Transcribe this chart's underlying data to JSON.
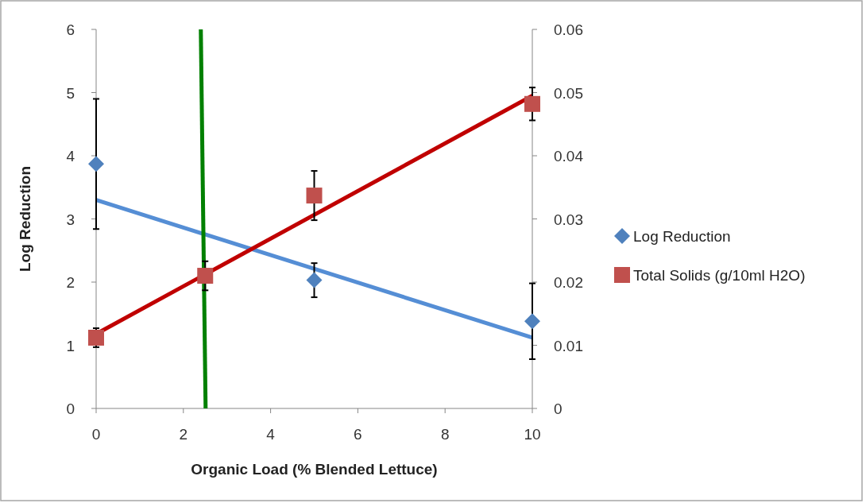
{
  "chart_data": {
    "type": "scatter",
    "xlabel": "Organic Load (% Blended Lettuce)",
    "ylabel": "Log Reduction",
    "xlim": [
      0,
      10
    ],
    "xticks": [
      0,
      2,
      4,
      6,
      8,
      10
    ],
    "ylim": [
      0,
      6
    ],
    "yticks": [
      0,
      1,
      2,
      3,
      4,
      5,
      6
    ],
    "y2lim": [
      0,
      0.06
    ],
    "y2ticks": [
      0,
      0.01,
      0.02,
      0.03,
      0.04,
      0.05,
      0.06
    ],
    "legend": "right",
    "grid": false,
    "series": [
      {
        "name": "Log Reduction",
        "marker": "diamond",
        "color": "#4f81bd",
        "x": [
          0,
          5,
          10
        ],
        "values": [
          3.87,
          2.03,
          1.38
        ],
        "errors": [
          1.03,
          0.27,
          0.6
        ]
      },
      {
        "name": "Total Solids (g/10ml H2O)",
        "marker": "square",
        "color": "#c0504d",
        "axis": "y2",
        "x": [
          0,
          2.5,
          5,
          10
        ],
        "values": [
          0.0112,
          0.021,
          0.0337,
          0.0482
        ],
        "errors": [
          0.0015,
          0.0023,
          0.0039,
          0.0026
        ]
      },
      {
        "type": "line",
        "marker": "none",
        "color": "#558ed5",
        "x": [
          0,
          10
        ],
        "values": [
          3.3,
          1.12
        ]
      },
      {
        "type": "line",
        "marker": "none",
        "color": "#c00000",
        "axis": "y2",
        "x": [
          0,
          10
        ],
        "values": [
          0.0118,
          0.0495
        ]
      },
      {
        "type": "line",
        "marker": "none",
        "color": "#008000",
        "x": [
          2.4,
          2.51
        ],
        "values": [
          6,
          0
        ]
      }
    ]
  }
}
